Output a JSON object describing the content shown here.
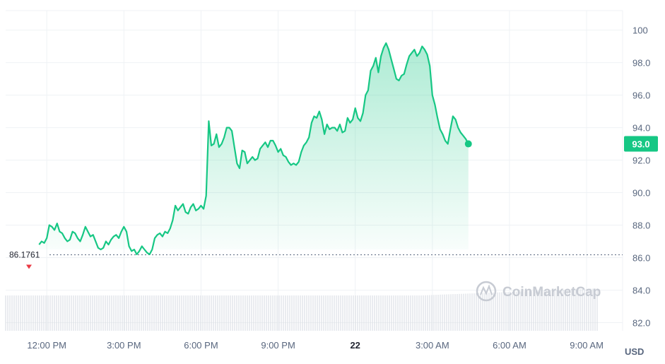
{
  "chart_data": {
    "type": "area",
    "y_unit": "USD",
    "ylim": [
      81.5,
      101.2
    ],
    "yticks": [
      {
        "value": 100,
        "label": "100"
      },
      {
        "value": 98,
        "label": "98.0"
      },
      {
        "value": 96,
        "label": "96.0"
      },
      {
        "value": 94,
        "label": "94.0"
      },
      {
        "value": 92,
        "label": "92.0"
      },
      {
        "value": 90,
        "label": "90.0"
      },
      {
        "value": 88,
        "label": "88.0"
      },
      {
        "value": 86,
        "label": "86.0"
      },
      {
        "value": 84,
        "label": "84.0"
      },
      {
        "value": 82,
        "label": "82.0"
      }
    ],
    "xlim": [
      10.4,
      34.4
    ],
    "xticks": [
      {
        "value": 12,
        "label": "12:00 PM"
      },
      {
        "value": 15,
        "label": "3:00 PM"
      },
      {
        "value": 18,
        "label": "6:00 PM"
      },
      {
        "value": 21,
        "label": "9:00 PM"
      },
      {
        "value": 24,
        "label": "22",
        "bold": true
      },
      {
        "value": 27,
        "label": "3:00 AM"
      },
      {
        "value": 30,
        "label": "6:00 AM"
      },
      {
        "value": 33,
        "label": "9:00 AM"
      }
    ],
    "grid": true,
    "open_price": 86.1761,
    "open_price_label": "86.1761",
    "last_price_label": "93.0",
    "colors": {
      "line": "#16c784",
      "fill": "#16c784",
      "open_marker": "#ea3943",
      "volume": "#d5d9e0"
    },
    "series": [
      {
        "values": [
          [
            11.7,
            86.8
          ],
          [
            11.8,
            87.0
          ],
          [
            11.9,
            86.9
          ],
          [
            12.0,
            87.2
          ],
          [
            12.1,
            88.0
          ],
          [
            12.2,
            87.9
          ],
          [
            12.3,
            87.7
          ],
          [
            12.4,
            88.1
          ],
          [
            12.5,
            87.6
          ],
          [
            12.6,
            87.5
          ],
          [
            12.7,
            87.2
          ],
          [
            12.8,
            87.0
          ],
          [
            12.9,
            87.1
          ],
          [
            13.0,
            87.6
          ],
          [
            13.1,
            87.5
          ],
          [
            13.2,
            87.2
          ],
          [
            13.3,
            87.0
          ],
          [
            13.4,
            87.4
          ],
          [
            13.5,
            87.9
          ],
          [
            13.6,
            87.6
          ],
          [
            13.7,
            87.3
          ],
          [
            13.8,
            87.4
          ],
          [
            13.9,
            87.0
          ],
          [
            14.0,
            86.6
          ],
          [
            14.1,
            86.5
          ],
          [
            14.2,
            86.6
          ],
          [
            14.3,
            87.0
          ],
          [
            14.4,
            86.8
          ],
          [
            14.5,
            87.1
          ],
          [
            14.6,
            87.3
          ],
          [
            14.7,
            87.4
          ],
          [
            14.8,
            87.2
          ],
          [
            14.9,
            87.6
          ],
          [
            15.0,
            87.9
          ],
          [
            15.1,
            87.6
          ],
          [
            15.2,
            86.7
          ],
          [
            15.3,
            86.4
          ],
          [
            15.4,
            86.5
          ],
          [
            15.5,
            86.2
          ],
          [
            15.6,
            86.4
          ],
          [
            15.7,
            86.7
          ],
          [
            15.8,
            86.5
          ],
          [
            15.9,
            86.3
          ],
          [
            16.0,
            86.2
          ],
          [
            16.1,
            86.5
          ],
          [
            16.2,
            87.2
          ],
          [
            16.3,
            87.4
          ],
          [
            16.4,
            87.5
          ],
          [
            16.5,
            87.3
          ],
          [
            16.6,
            87.6
          ],
          [
            16.7,
            87.5
          ],
          [
            16.8,
            87.8
          ],
          [
            16.9,
            88.3
          ],
          [
            17.0,
            89.2
          ],
          [
            17.1,
            88.9
          ],
          [
            17.2,
            89.1
          ],
          [
            17.3,
            89.3
          ],
          [
            17.4,
            88.8
          ],
          [
            17.5,
            88.7
          ],
          [
            17.6,
            89.1
          ],
          [
            17.7,
            89.3
          ],
          [
            17.8,
            88.9
          ],
          [
            17.9,
            89.0
          ],
          [
            18.0,
            89.2
          ],
          [
            18.1,
            89.0
          ],
          [
            18.2,
            89.8
          ],
          [
            18.3,
            94.4
          ],
          [
            18.4,
            92.9
          ],
          [
            18.5,
            93.0
          ],
          [
            18.6,
            93.6
          ],
          [
            18.7,
            92.8
          ],
          [
            18.8,
            93.0
          ],
          [
            18.9,
            93.4
          ],
          [
            19.0,
            94.0
          ],
          [
            19.1,
            94.0
          ],
          [
            19.2,
            93.8
          ],
          [
            19.3,
            92.8
          ],
          [
            19.4,
            91.8
          ],
          [
            19.5,
            91.5
          ],
          [
            19.6,
            92.6
          ],
          [
            19.7,
            92.5
          ],
          [
            19.8,
            91.8
          ],
          [
            19.9,
            92.0
          ],
          [
            20.0,
            92.2
          ],
          [
            20.1,
            92.0
          ],
          [
            20.2,
            92.1
          ],
          [
            20.3,
            92.7
          ],
          [
            20.4,
            92.9
          ],
          [
            20.5,
            93.1
          ],
          [
            20.6,
            92.8
          ],
          [
            20.7,
            93.2
          ],
          [
            20.8,
            93.2
          ],
          [
            20.9,
            92.9
          ],
          [
            21.0,
            92.5
          ],
          [
            21.1,
            92.7
          ],
          [
            21.2,
            92.3
          ],
          [
            21.3,
            92.2
          ],
          [
            21.4,
            91.9
          ],
          [
            21.5,
            91.7
          ],
          [
            21.6,
            91.8
          ],
          [
            21.7,
            91.7
          ],
          [
            21.8,
            91.9
          ],
          [
            21.9,
            92.5
          ],
          [
            22.0,
            92.9
          ],
          [
            22.1,
            93.1
          ],
          [
            22.2,
            93.4
          ],
          [
            22.3,
            94.3
          ],
          [
            22.4,
            94.7
          ],
          [
            22.5,
            94.6
          ],
          [
            22.6,
            95.0
          ],
          [
            22.7,
            94.5
          ],
          [
            22.8,
            93.6
          ],
          [
            22.9,
            94.2
          ],
          [
            23.0,
            93.9
          ],
          [
            23.1,
            94.0
          ],
          [
            23.2,
            94.0
          ],
          [
            23.3,
            93.8
          ],
          [
            23.4,
            94.2
          ],
          [
            23.5,
            93.7
          ],
          [
            23.6,
            93.8
          ],
          [
            23.7,
            94.6
          ],
          [
            23.8,
            94.3
          ],
          [
            23.9,
            94.5
          ],
          [
            24.0,
            95.2
          ],
          [
            24.1,
            94.6
          ],
          [
            24.2,
            94.4
          ],
          [
            24.3,
            94.9
          ],
          [
            24.4,
            96.0
          ],
          [
            24.5,
            96.3
          ],
          [
            24.6,
            97.5
          ],
          [
            24.7,
            97.8
          ],
          [
            24.8,
            98.3
          ],
          [
            24.9,
            97.4
          ],
          [
            25.0,
            98.4
          ],
          [
            25.1,
            98.9
          ],
          [
            25.2,
            99.2
          ],
          [
            25.3,
            98.8
          ],
          [
            25.4,
            98.2
          ],
          [
            25.5,
            97.6
          ],
          [
            25.6,
            97.0
          ],
          [
            25.7,
            96.9
          ],
          [
            25.8,
            97.2
          ],
          [
            25.9,
            97.3
          ],
          [
            26.0,
            97.9
          ],
          [
            26.1,
            98.4
          ],
          [
            26.2,
            98.6
          ],
          [
            26.3,
            98.8
          ],
          [
            26.4,
            98.4
          ],
          [
            26.5,
            98.6
          ],
          [
            26.6,
            99.0
          ],
          [
            26.7,
            98.8
          ],
          [
            26.8,
            98.5
          ],
          [
            26.9,
            97.8
          ],
          [
            27.0,
            96.0
          ],
          [
            27.1,
            95.4
          ],
          [
            27.2,
            94.6
          ],
          [
            27.3,
            93.9
          ],
          [
            27.4,
            93.6
          ],
          [
            27.5,
            93.2
          ],
          [
            27.6,
            93.0
          ],
          [
            27.7,
            93.9
          ],
          [
            27.8,
            94.7
          ],
          [
            27.9,
            94.5
          ],
          [
            28.0,
            94.0
          ],
          [
            28.1,
            93.7
          ],
          [
            28.2,
            93.5
          ],
          [
            28.3,
            93.3
          ],
          [
            28.4,
            93.0
          ]
        ]
      }
    ]
  },
  "watermark": {
    "text": "CoinMarketCap"
  }
}
